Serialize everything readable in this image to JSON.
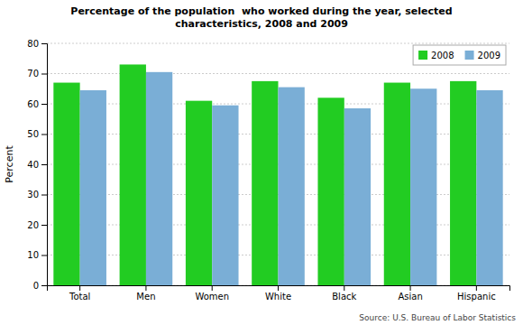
{
  "chart_data": {
    "type": "bar",
    "title": "Percentage of the population  who worked during the year, selected\ncharacteristics, 2008 and 2009",
    "ylabel": "Percent",
    "categories": [
      "Total",
      "Men",
      "Women",
      "White",
      "Black",
      "Asian",
      "Hispanic"
    ],
    "series": [
      {
        "name": "2008",
        "color": "#22cc22",
        "values": [
          67,
          73,
          61,
          67.5,
          62,
          67,
          67.5
        ]
      },
      {
        "name": "2009",
        "color": "#7aaed6",
        "values": [
          64.5,
          70.5,
          59.5,
          65.5,
          58.5,
          65,
          64.5
        ]
      }
    ],
    "ylim": [
      0,
      80
    ],
    "yticks": [
      0,
      10,
      20,
      30,
      40,
      50,
      60,
      70,
      80
    ],
    "grid": true,
    "legend": "upper right",
    "annotations": [
      "Source: U.S. Bureau of Labor Statistics"
    ]
  }
}
